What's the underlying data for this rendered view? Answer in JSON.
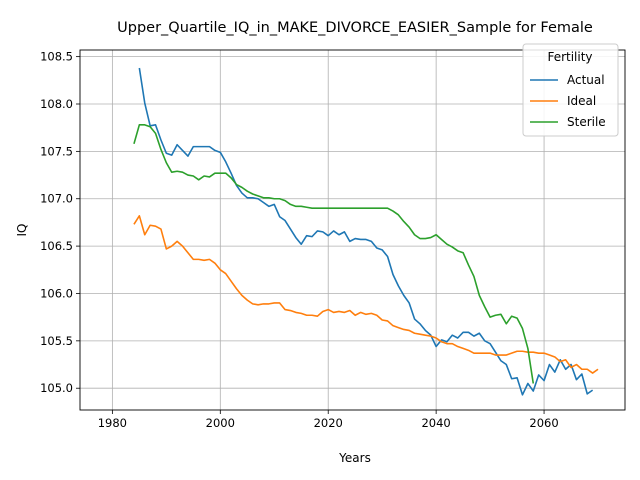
{
  "chart_data": {
    "type": "line",
    "title": "Upper_Quartile_IQ_in_MAKE_DIVORCE_EASIER_Sample for Female",
    "xlabel": "Years",
    "ylabel": "IQ",
    "xlim": [
      1974,
      2075
    ],
    "ylim": [
      104.77,
      108.57
    ],
    "xticks": [
      1980,
      2000,
      2020,
      2040,
      2060
    ],
    "xtick_labels": [
      "1980",
      "2000",
      "2020",
      "2040",
      "2060"
    ],
    "yticks": [
      105.0,
      105.5,
      106.0,
      106.5,
      107.0,
      107.5,
      108.0,
      108.5
    ],
    "ytick_labels": [
      "105.0",
      "105.5",
      "106.0",
      "106.5",
      "107.0",
      "107.5",
      "108.0",
      "108.5"
    ],
    "grid": true,
    "legend": {
      "title": "Fertility",
      "position": "top-right"
    },
    "series": [
      {
        "name": "Actual",
        "color": "#1f77b4",
        "x": [
          1985,
          1986,
          1987,
          1988,
          1989,
          1990,
          1991,
          1992,
          1993,
          1994,
          1995,
          1996,
          1997,
          1998,
          1999,
          2000,
          2001,
          2002,
          2003,
          2004,
          2005,
          2006,
          2007,
          2008,
          2009,
          2010,
          2011,
          2012,
          2013,
          2014,
          2015,
          2016,
          2017,
          2018,
          2019,
          2020,
          2021,
          2022,
          2023,
          2024,
          2025,
          2026,
          2027,
          2028,
          2029,
          2030,
          2031,
          2032,
          2033,
          2034,
          2035,
          2036,
          2037,
          2038,
          2039,
          2040,
          2041,
          2042,
          2043,
          2044,
          2045,
          2046,
          2047,
          2048,
          2049,
          2050,
          2051,
          2052,
          2053,
          2054,
          2055,
          2056,
          2057,
          2058,
          2059,
          2060,
          2061,
          2062,
          2063,
          2064,
          2065,
          2066,
          2067,
          2068,
          2069,
          2070
        ],
        "values": [
          108.38,
          108.01,
          107.77,
          107.78,
          107.62,
          107.48,
          107.46,
          107.57,
          107.51,
          107.45,
          107.55,
          107.55,
          107.55,
          107.55,
          107.51,
          107.49,
          107.39,
          107.27,
          107.14,
          107.06,
          107.01,
          107.01,
          107.0,
          106.96,
          106.92,
          106.94,
          106.81,
          106.77,
          106.68,
          106.59,
          106.52,
          106.61,
          106.6,
          106.66,
          106.65,
          106.61,
          106.66,
          106.62,
          106.65,
          106.55,
          106.58,
          106.57,
          106.57,
          106.55,
          106.48,
          106.46,
          106.39,
          106.2,
          106.08,
          105.98,
          105.9,
          105.73,
          105.68,
          105.61,
          105.56,
          105.44,
          105.51,
          105.49,
          105.56,
          105.53,
          105.59,
          105.59,
          105.55,
          105.58,
          105.5,
          105.47,
          105.38,
          105.29,
          105.25,
          105.1,
          105.11,
          104.93,
          105.05,
          104.97,
          105.14,
          105.08,
          105.25,
          105.17,
          105.3,
          105.2,
          105.25,
          105.09,
          105.15,
          104.94,
          104.98,
          null
        ]
      },
      {
        "name": "Ideal",
        "color": "#ff7f0e",
        "x": [
          1984,
          1985,
          1986,
          1987,
          1988,
          1989,
          1990,
          1991,
          1992,
          1993,
          1994,
          1995,
          1996,
          1997,
          1998,
          1999,
          2000,
          2001,
          2002,
          2003,
          2004,
          2005,
          2006,
          2007,
          2008,
          2009,
          2010,
          2011,
          2012,
          2013,
          2014,
          2015,
          2016,
          2017,
          2018,
          2019,
          2020,
          2021,
          2022,
          2023,
          2024,
          2025,
          2026,
          2027,
          2028,
          2029,
          2030,
          2031,
          2032,
          2033,
          2034,
          2035,
          2036,
          2037,
          2038,
          2039,
          2040,
          2041,
          2042,
          2043,
          2044,
          2045,
          2046,
          2047,
          2048,
          2049,
          2050,
          2051,
          2052,
          2053,
          2054,
          2055,
          2056,
          2057,
          2058,
          2059,
          2060,
          2061,
          2062,
          2063,
          2064,
          2065,
          2066,
          2067,
          2068,
          2069,
          2070
        ],
        "values": [
          106.73,
          106.82,
          106.62,
          106.72,
          106.71,
          106.68,
          106.47,
          106.5,
          106.55,
          106.5,
          106.43,
          106.36,
          106.36,
          106.35,
          106.36,
          106.32,
          106.25,
          106.21,
          106.13,
          106.05,
          105.98,
          105.93,
          105.89,
          105.88,
          105.89,
          105.89,
          105.9,
          105.9,
          105.83,
          105.82,
          105.8,
          105.79,
          105.77,
          105.77,
          105.76,
          105.81,
          105.83,
          105.8,
          105.81,
          105.8,
          105.82,
          105.77,
          105.8,
          105.78,
          105.79,
          105.77,
          105.72,
          105.71,
          105.66,
          105.64,
          105.62,
          105.61,
          105.58,
          105.57,
          105.56,
          105.55,
          105.53,
          105.49,
          105.47,
          105.47,
          105.44,
          105.42,
          105.4,
          105.37,
          105.37,
          105.37,
          105.37,
          105.35,
          105.35,
          105.35,
          105.37,
          105.39,
          105.39,
          105.38,
          105.38,
          105.37,
          105.37,
          105.35,
          105.33,
          105.28,
          105.3,
          105.22,
          105.25,
          105.2,
          105.2,
          105.16,
          105.2
        ]
      },
      {
        "name": "Sterile",
        "color": "#2ca02c",
        "x": [
          1984,
          1985,
          1986,
          1987,
          1988,
          1989,
          1990,
          1991,
          1992,
          1993,
          1994,
          1995,
          1996,
          1997,
          1998,
          1999,
          2000,
          2001,
          2002,
          2003,
          2004,
          2005,
          2006,
          2007,
          2008,
          2009,
          2010,
          2011,
          2012,
          2013,
          2014,
          2015,
          2016,
          2017,
          2018,
          2019,
          2020,
          2021,
          2022,
          2023,
          2024,
          2025,
          2026,
          2027,
          2028,
          2029,
          2030,
          2031,
          2032,
          2033,
          2034,
          2035,
          2036,
          2037,
          2038,
          2039,
          2040,
          2041,
          2042,
          2043,
          2044,
          2045,
          2046,
          2047,
          2048,
          2049,
          2050,
          2051,
          2052,
          2053,
          2054,
          2055,
          2056,
          2057,
          2058,
          2059,
          2060
        ],
        "values": [
          107.58,
          107.78,
          107.78,
          107.76,
          107.69,
          107.52,
          107.38,
          107.28,
          107.29,
          107.28,
          107.25,
          107.24,
          107.2,
          107.24,
          107.23,
          107.27,
          107.27,
          107.27,
          107.22,
          107.15,
          107.12,
          107.08,
          107.05,
          107.03,
          107.01,
          107.01,
          107.0,
          107.0,
          106.98,
          106.94,
          106.92,
          106.92,
          106.91,
          106.9,
          106.9,
          106.9,
          106.9,
          106.9,
          106.9,
          106.9,
          106.9,
          106.9,
          106.9,
          106.9,
          106.9,
          106.9,
          106.9,
          106.9,
          106.87,
          106.83,
          106.76,
          106.7,
          106.62,
          106.58,
          106.58,
          106.59,
          106.62,
          106.57,
          106.52,
          106.49,
          106.45,
          106.43,
          106.3,
          106.18,
          105.98,
          105.86,
          105.75,
          105.77,
          105.78,
          105.68,
          105.76,
          105.74,
          105.63,
          105.42,
          105.05,
          null,
          null
        ]
      }
    ]
  }
}
